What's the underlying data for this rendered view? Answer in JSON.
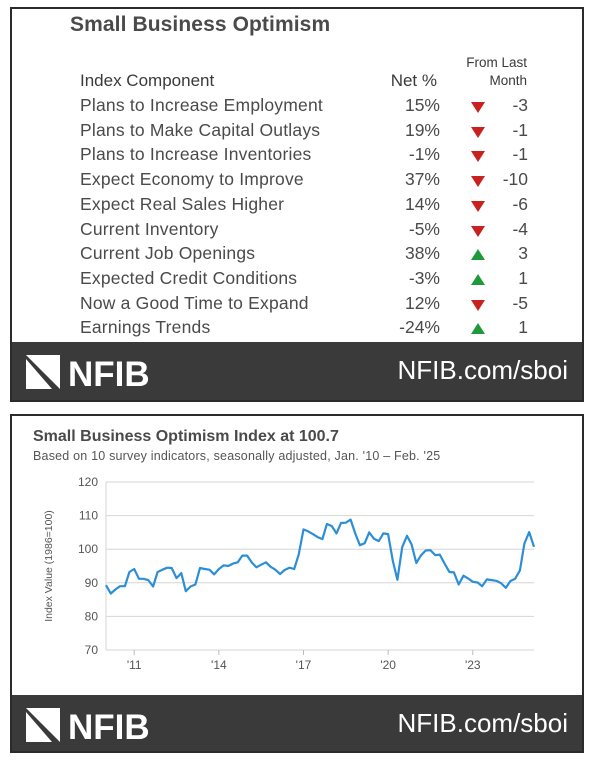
{
  "table_card": {
    "title": "Small Business Optimism",
    "header_component": "Index Component",
    "header_net": "Net %",
    "header_change_line1": "From Last",
    "header_change_line2": "Month",
    "rows": [
      {
        "component": "Plans to Increase Employment",
        "net": "15%",
        "direction": "down",
        "change": "-3"
      },
      {
        "component": "Plans to Make Capital Outlays",
        "net": "19%",
        "direction": "down",
        "change": "-1"
      },
      {
        "component": "Plans to Increase Inventories",
        "net": "-1%",
        "direction": "down",
        "change": "-1"
      },
      {
        "component": "Expect Economy to Improve",
        "net": "37%",
        "direction": "down",
        "change": "-10"
      },
      {
        "component": "Expect Real Sales Higher",
        "net": "14%",
        "direction": "down",
        "change": "-6"
      },
      {
        "component": "Current Inventory",
        "net": "-5%",
        "direction": "down",
        "change": "-4"
      },
      {
        "component": "Current Job Openings",
        "net": "38%",
        "direction": "up",
        "change": "3"
      },
      {
        "component": "Expected Credit Conditions",
        "net": "-3%",
        "direction": "up",
        "change": "1"
      },
      {
        "component": "Now a Good Time to Expand",
        "net": "12%",
        "direction": "down",
        "change": "-5"
      },
      {
        "component": "Earnings Trends",
        "net": "-24%",
        "direction": "up",
        "change": "1"
      }
    ],
    "footer_logo": "NFIB",
    "footer_url": "NFIB.com/sboi"
  },
  "chart_card": {
    "title": "Small Business Optimism Index at 100.7",
    "subtitle": "Based on 10 survey indicators, seasonally adjusted, Jan. '10 – Feb. '25",
    "footer_logo": "NFIB",
    "footer_url": "NFIB.com/sboi"
  },
  "colors": {
    "down": "#c8211f",
    "up": "#1f9a3a",
    "line": "#2c8fd6",
    "footer": "#3a3a3a"
  },
  "chart_data": {
    "type": "line",
    "title": "Small Business Optimism Index at 100.7",
    "subtitle": "Based on 10 survey indicators, seasonally adjusted, Jan. '10 – Feb. '25",
    "xlabel": "",
    "ylabel": "Index Value (1986=100)",
    "ylim": [
      70,
      120
    ],
    "yticks": [
      70,
      80,
      90,
      100,
      110,
      120
    ],
    "xlim": [
      2010.0,
      2025.17
    ],
    "xticks": [
      {
        "value": 2011,
        "label": "'11"
      },
      {
        "value": 2014,
        "label": "'14"
      },
      {
        "value": 2017,
        "label": "'17"
      },
      {
        "value": 2020,
        "label": "'20"
      },
      {
        "value": 2023,
        "label": "'23"
      }
    ],
    "grid": "horizontal",
    "series": [
      {
        "x": [
          2010.0,
          2010.17,
          2010.33,
          2010.5,
          2010.67,
          2010.83,
          2011.0,
          2011.17,
          2011.33,
          2011.5,
          2011.67,
          2011.83,
          2012.0,
          2012.17,
          2012.33,
          2012.5,
          2012.67,
          2012.83,
          2013.0,
          2013.17,
          2013.33,
          2013.5,
          2013.67,
          2013.83,
          2014.0,
          2014.17,
          2014.33,
          2014.5,
          2014.67,
          2014.83,
          2015.0,
          2015.17,
          2015.33,
          2015.5,
          2015.67,
          2015.83,
          2016.0,
          2016.17,
          2016.33,
          2016.5,
          2016.67,
          2016.83,
          2017.0,
          2017.17,
          2017.33,
          2017.5,
          2017.67,
          2017.83,
          2018.0,
          2018.17,
          2018.33,
          2018.5,
          2018.67,
          2018.83,
          2019.0,
          2019.17,
          2019.33,
          2019.5,
          2019.67,
          2019.83,
          2020.0,
          2020.17,
          2020.33,
          2020.5,
          2020.67,
          2020.83,
          2021.0,
          2021.17,
          2021.33,
          2021.5,
          2021.67,
          2021.83,
          2022.0,
          2022.17,
          2022.33,
          2022.5,
          2022.67,
          2022.83,
          2023.0,
          2023.17,
          2023.33,
          2023.5,
          2023.67,
          2023.83,
          2024.0,
          2024.17,
          2024.33,
          2024.5,
          2024.67,
          2024.83,
          2025.0,
          2025.17
        ],
        "y": [
          89.3,
          86.8,
          88.0,
          89.0,
          89.0,
          93.2,
          94.1,
          91.2,
          91.2,
          90.8,
          88.9,
          93.2,
          93.9,
          94.5,
          94.4,
          91.4,
          92.9,
          87.5,
          88.9,
          89.5,
          94.4,
          94.1,
          93.9,
          92.5,
          94.1,
          95.2,
          95.0,
          95.7,
          96.1,
          98.1,
          98.1,
          96.0,
          94.6,
          95.4,
          96.1,
          94.8,
          93.9,
          92.6,
          93.8,
          94.5,
          94.1,
          98.4,
          105.9,
          105.3,
          104.5,
          103.6,
          103.0,
          107.5,
          106.9,
          104.7,
          107.8,
          107.9,
          108.8,
          104.8,
          101.2,
          101.8,
          105.0,
          103.1,
          102.4,
          104.7,
          104.5,
          96.4,
          90.9,
          100.6,
          104.0,
          101.4,
          95.9,
          98.2,
          99.6,
          99.7,
          98.2,
          98.4,
          95.7,
          93.2,
          93.1,
          89.5,
          92.1,
          91.3,
          90.3,
          90.1,
          89.0,
          91.0,
          90.8,
          90.6,
          89.9,
          88.5,
          90.5,
          91.2,
          93.7,
          101.7,
          105.1,
          100.7
        ]
      }
    ]
  }
}
